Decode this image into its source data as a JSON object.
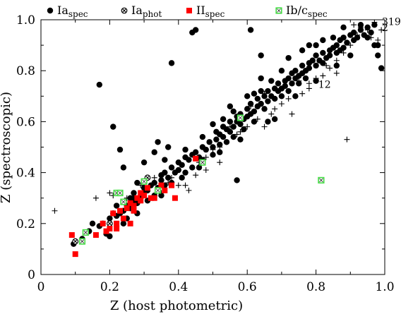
{
  "chart_data": {
    "type": "scatter",
    "xlabel": "Z (host photometric)",
    "ylabel": "Z (spectroscopic)",
    "xlim": [
      0,
      1
    ],
    "ylim": [
      0,
      1
    ],
    "xticks": [
      0,
      0.2,
      0.4,
      0.6,
      0.8,
      1.0
    ],
    "xtick_labels": [
      "0",
      "0.2",
      "0.4",
      "0.6",
      "0.8",
      "1.0"
    ],
    "yticks": [
      0,
      0.2,
      0.4,
      0.6,
      0.8,
      1.0
    ],
    "ytick_labels": [
      "0",
      "0.2",
      "0.4",
      "0.6",
      "0.8",
      "1.0"
    ],
    "grid": false,
    "legend_placement": "top, above plot",
    "annotations": [
      {
        "text": "319",
        "x": 1.0,
        "y": 0.99
      },
      {
        "text": "12",
        "x": 0.815,
        "y": 0.744
      },
      {
        "text": "2",
        "x": 1.0,
        "y": 0.967
      }
    ],
    "series": [
      {
        "name": "Ia",
        "name_sub": "spec",
        "marker": "filled-circle",
        "color": "#000000",
        "points": [
          [
            0.095,
            0.12
          ],
          [
            0.12,
            0.14
          ],
          [
            0.14,
            0.17
          ],
          [
            0.15,
            0.2
          ],
          [
            0.17,
            0.19
          ],
          [
            0.18,
            0.2
          ],
          [
            0.19,
            0.16
          ],
          [
            0.2,
            0.15
          ],
          [
            0.2,
            0.22
          ],
          [
            0.21,
            0.24
          ],
          [
            0.22,
            0.23
          ],
          [
            0.23,
            0.24
          ],
          [
            0.24,
            0.25
          ],
          [
            0.25,
            0.22
          ],
          [
            0.25,
            0.27
          ],
          [
            0.26,
            0.26
          ],
          [
            0.27,
            0.28
          ],
          [
            0.27,
            0.3
          ],
          [
            0.28,
            0.28
          ],
          [
            0.29,
            0.3
          ],
          [
            0.3,
            0.32
          ],
          [
            0.3,
            0.34
          ],
          [
            0.31,
            0.29
          ],
          [
            0.31,
            0.33
          ],
          [
            0.32,
            0.35
          ],
          [
            0.33,
            0.31
          ],
          [
            0.33,
            0.36
          ],
          [
            0.34,
            0.34
          ],
          [
            0.35,
            0.37
          ],
          [
            0.35,
            0.39
          ],
          [
            0.36,
            0.35
          ],
          [
            0.36,
            0.4
          ],
          [
            0.37,
            0.38
          ],
          [
            0.38,
            0.36
          ],
          [
            0.38,
            0.42
          ],
          [
            0.39,
            0.4
          ],
          [
            0.4,
            0.41
          ],
          [
            0.4,
            0.44
          ],
          [
            0.41,
            0.43
          ],
          [
            0.42,
            0.4
          ],
          [
            0.42,
            0.46
          ],
          [
            0.43,
            0.45
          ],
          [
            0.44,
            0.47
          ],
          [
            0.44,
            0.42
          ],
          [
            0.45,
            0.48
          ],
          [
            0.46,
            0.46
          ],
          [
            0.47,
            0.5
          ],
          [
            0.47,
            0.45
          ],
          [
            0.48,
            0.49
          ],
          [
            0.49,
            0.52
          ],
          [
            0.5,
            0.5
          ],
          [
            0.5,
            0.47
          ],
          [
            0.51,
            0.53
          ],
          [
            0.51,
            0.56
          ],
          [
            0.52,
            0.51
          ],
          [
            0.52,
            0.55
          ],
          [
            0.53,
            0.54
          ],
          [
            0.53,
            0.58
          ],
          [
            0.54,
            0.52
          ],
          [
            0.54,
            0.57
          ],
          [
            0.55,
            0.56
          ],
          [
            0.55,
            0.6
          ],
          [
            0.56,
            0.58
          ],
          [
            0.56,
            0.54
          ],
          [
            0.57,
            0.6
          ],
          [
            0.57,
            0.62
          ],
          [
            0.58,
            0.59
          ],
          [
            0.58,
            0.63
          ],
          [
            0.59,
            0.61
          ],
          [
            0.59,
            0.57
          ],
          [
            0.6,
            0.62
          ],
          [
            0.6,
            0.65
          ],
          [
            0.61,
            0.63
          ],
          [
            0.61,
            0.67
          ],
          [
            0.62,
            0.64
          ],
          [
            0.62,
            0.6
          ],
          [
            0.63,
            0.66
          ],
          [
            0.63,
            0.69
          ],
          [
            0.64,
            0.67
          ],
          [
            0.65,
            0.7
          ],
          [
            0.65,
            0.65
          ],
          [
            0.66,
            0.68
          ],
          [
            0.66,
            0.72
          ],
          [
            0.67,
            0.7
          ],
          [
            0.68,
            0.73
          ],
          [
            0.68,
            0.69
          ],
          [
            0.69,
            0.72
          ],
          [
            0.69,
            0.75
          ],
          [
            0.7,
            0.73
          ],
          [
            0.7,
            0.7
          ],
          [
            0.71,
            0.76
          ],
          [
            0.71,
            0.74
          ],
          [
            0.72,
            0.77
          ],
          [
            0.72,
            0.72
          ],
          [
            0.73,
            0.75
          ],
          [
            0.73,
            0.79
          ],
          [
            0.74,
            0.77
          ],
          [
            0.74,
            0.8
          ],
          [
            0.75,
            0.78
          ],
          [
            0.75,
            0.75
          ],
          [
            0.76,
            0.79
          ],
          [
            0.76,
            0.82
          ],
          [
            0.77,
            0.8
          ],
          [
            0.77,
            0.77
          ],
          [
            0.78,
            0.83
          ],
          [
            0.78,
            0.81
          ],
          [
            0.79,
            0.84
          ],
          [
            0.8,
            0.82
          ],
          [
            0.8,
            0.86
          ],
          [
            0.81,
            0.84
          ],
          [
            0.82,
            0.87
          ],
          [
            0.82,
            0.83
          ],
          [
            0.83,
            0.85
          ],
          [
            0.84,
            0.88
          ],
          [
            0.84,
            0.86
          ],
          [
            0.85,
            0.89
          ],
          [
            0.86,
            0.87
          ],
          [
            0.86,
            0.9
          ],
          [
            0.87,
            0.88
          ],
          [
            0.87,
            0.92
          ],
          [
            0.88,
            0.89
          ],
          [
            0.88,
            0.93
          ],
          [
            0.89,
            0.91
          ],
          [
            0.9,
            0.94
          ],
          [
            0.91,
            0.92
          ],
          [
            0.91,
            0.95
          ],
          [
            0.92,
            0.93
          ],
          [
            0.93,
            0.96
          ],
          [
            0.94,
            0.94
          ],
          [
            0.95,
            0.97
          ],
          [
            0.96,
            0.95
          ],
          [
            0.97,
            0.98
          ],
          [
            0.98,
            0.9
          ],
          [
            0.99,
            0.81
          ],
          [
            0.93,
            0.98
          ],
          [
            0.17,
            0.745
          ],
          [
            0.21,
            0.58
          ],
          [
            0.38,
            0.83
          ],
          [
            0.44,
            0.95
          ],
          [
            0.45,
            0.96
          ],
          [
            0.61,
            0.96
          ],
          [
            0.64,
            0.86
          ],
          [
            0.57,
            0.37
          ],
          [
            0.68,
            0.61
          ],
          [
            0.37,
            0.5
          ],
          [
            0.34,
            0.52
          ],
          [
            0.33,
            0.48
          ],
          [
            0.23,
            0.49
          ],
          [
            0.24,
            0.42
          ],
          [
            0.3,
            0.44
          ],
          [
            0.36,
            0.45
          ],
          [
            0.42,
            0.49
          ],
          [
            0.5,
            0.59
          ],
          [
            0.55,
            0.66
          ],
          [
            0.6,
            0.7
          ],
          [
            0.62,
            0.71
          ],
          [
            0.64,
            0.77
          ],
          [
            0.7,
            0.8
          ],
          [
            0.72,
            0.85
          ],
          [
            0.76,
            0.88
          ],
          [
            0.8,
            0.9
          ],
          [
            0.85,
            0.93
          ],
          [
            0.88,
            0.97
          ],
          [
            0.95,
            0.93
          ],
          [
            0.98,
            0.86
          ],
          [
            0.97,
            0.9
          ],
          [
            0.28,
            0.36
          ],
          [
            0.27,
            0.32
          ],
          [
            0.26,
            0.3
          ],
          [
            0.22,
            0.27
          ],
          [
            0.24,
            0.2
          ],
          [
            0.28,
            0.24
          ],
          [
            0.35,
            0.31
          ],
          [
            0.41,
            0.38
          ],
          [
            0.46,
            0.42
          ],
          [
            0.52,
            0.48
          ],
          [
            0.58,
            0.53
          ],
          [
            0.66,
            0.6
          ],
          [
            0.74,
            0.7
          ],
          [
            0.8,
            0.76
          ],
          [
            0.86,
            0.82
          ],
          [
            0.9,
            0.86
          ],
          [
            0.47,
            0.54
          ],
          [
            0.53,
            0.61
          ],
          [
            0.56,
            0.64
          ],
          [
            0.64,
            0.72
          ],
          [
            0.67,
            0.76
          ],
          [
            0.78,
            0.9
          ],
          [
            0.82,
            0.92
          ]
        ]
      },
      {
        "name": "Ia",
        "name_sub": "phot",
        "marker": "circle-x",
        "color": "#000000",
        "points": [
          [
            0.31,
            0.38
          ],
          [
            0.2,
            0.2
          ],
          [
            0.1,
            0.13
          ]
        ]
      },
      {
        "name": "II",
        "name_sub": "spec",
        "marker": "filled-square",
        "color": "#ff0000",
        "points": [
          [
            0.09,
            0.155
          ],
          [
            0.1,
            0.08
          ],
          [
            0.12,
            0.13
          ],
          [
            0.16,
            0.155
          ],
          [
            0.18,
            0.2
          ],
          [
            0.19,
            0.17
          ],
          [
            0.2,
            0.18
          ],
          [
            0.21,
            0.24
          ],
          [
            0.22,
            0.2
          ],
          [
            0.23,
            0.25
          ],
          [
            0.24,
            0.22
          ],
          [
            0.25,
            0.26
          ],
          [
            0.26,
            0.28
          ],
          [
            0.26,
            0.2
          ],
          [
            0.27,
            0.27
          ],
          [
            0.28,
            0.3
          ],
          [
            0.29,
            0.32
          ],
          [
            0.3,
            0.31
          ],
          [
            0.31,
            0.34
          ],
          [
            0.32,
            0.3
          ],
          [
            0.33,
            0.3
          ],
          [
            0.34,
            0.33
          ],
          [
            0.36,
            0.33
          ],
          [
            0.38,
            0.35
          ],
          [
            0.39,
            0.3
          ],
          [
            0.45,
            0.455
          ],
          [
            0.27,
            0.25
          ],
          [
            0.22,
            0.18
          ],
          [
            0.29,
            0.29
          ],
          [
            0.35,
            0.35
          ]
        ]
      },
      {
        "name": "Ib/c",
        "name_sub": "spec",
        "marker": "green-square-x",
        "color": "#44dd44",
        "points": [
          [
            0.12,
            0.13
          ],
          [
            0.13,
            0.165
          ],
          [
            0.22,
            0.32
          ],
          [
            0.23,
            0.32
          ],
          [
            0.24,
            0.285
          ],
          [
            0.3,
            0.365
          ],
          [
            0.34,
            0.33
          ],
          [
            0.47,
            0.44
          ],
          [
            0.58,
            0.615
          ],
          [
            0.815,
            0.37
          ]
        ]
      },
      {
        "name": "",
        "marker": "plus",
        "color": "#000000",
        "points": [
          [
            0.04,
            0.25
          ],
          [
            0.16,
            0.3
          ],
          [
            0.2,
            0.32
          ],
          [
            0.21,
            0.31
          ],
          [
            0.25,
            0.3
          ],
          [
            0.27,
            0.32
          ],
          [
            0.29,
            0.35
          ],
          [
            0.33,
            0.38
          ],
          [
            0.35,
            0.37
          ],
          [
            0.37,
            0.36
          ],
          [
            0.38,
            0.38
          ],
          [
            0.4,
            0.41
          ],
          [
            0.42,
            0.35
          ],
          [
            0.43,
            0.33
          ],
          [
            0.45,
            0.39
          ],
          [
            0.48,
            0.41
          ],
          [
            0.48,
            0.46
          ],
          [
            0.52,
            0.5
          ],
          [
            0.52,
            0.44
          ],
          [
            0.55,
            0.58
          ],
          [
            0.57,
            0.55
          ],
          [
            0.6,
            0.58
          ],
          [
            0.62,
            0.6
          ],
          [
            0.63,
            0.61
          ],
          [
            0.65,
            0.58
          ],
          [
            0.67,
            0.63
          ],
          [
            0.68,
            0.65
          ],
          [
            0.7,
            0.67
          ],
          [
            0.72,
            0.69
          ],
          [
            0.73,
            0.63
          ],
          [
            0.76,
            0.71
          ],
          [
            0.78,
            0.73
          ],
          [
            0.8,
            0.77
          ],
          [
            0.82,
            0.78
          ],
          [
            0.84,
            0.81
          ],
          [
            0.86,
            0.84
          ],
          [
            0.88,
            0.87
          ],
          [
            0.89,
            0.53
          ],
          [
            0.9,
            0.9
          ],
          [
            0.92,
            0.94
          ],
          [
            0.93,
            0.97
          ],
          [
            0.95,
            0.96
          ],
          [
            0.96,
            0.93
          ],
          [
            0.98,
            0.92
          ],
          [
            0.99,
            0.96
          ],
          [
            0.55,
            0.56
          ],
          [
            0.65,
            0.71
          ],
          [
            0.72,
            0.72
          ],
          [
            0.78,
            0.75
          ],
          [
            0.86,
            0.79
          ],
          [
            0.35,
            0.32
          ],
          [
            0.27,
            0.26
          ],
          [
            0.4,
            0.35
          ],
          [
            0.46,
            0.44
          ],
          [
            0.5,
            0.49
          ],
          [
            0.58,
            0.56
          ],
          [
            0.61,
            0.66
          ],
          [
            0.75,
            0.76
          ],
          [
            0.83,
            0.82
          ],
          [
            0.87,
            0.92
          ],
          [
            0.91,
            0.98
          ],
          [
            0.97,
            0.99
          ]
        ]
      }
    ]
  }
}
